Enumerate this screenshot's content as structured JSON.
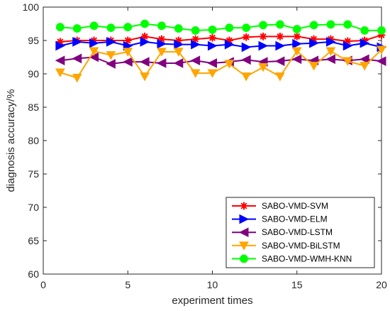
{
  "chart_data": {
    "type": "line",
    "xlabel": "experiment times",
    "ylabel": "diagnosis accuracy/%",
    "xlim": [
      0,
      20
    ],
    "ylim": [
      60,
      100
    ],
    "xticks": [
      0,
      5,
      10,
      15,
      20
    ],
    "yticks": [
      60,
      65,
      70,
      75,
      80,
      85,
      90,
      95,
      100
    ],
    "x": [
      1,
      2,
      3,
      4,
      5,
      6,
      7,
      8,
      9,
      10,
      11,
      12,
      13,
      14,
      15,
      16,
      17,
      18,
      19,
      20
    ],
    "grid": false,
    "legend_position": "bottom-right",
    "series": [
      {
        "name": "SABO-VMD-SVM",
        "color": "#ff0000",
        "marker": "asterisk",
        "values": [
          94.8,
          95.0,
          95.0,
          95.0,
          95.0,
          95.6,
          95.2,
          95.0,
          95.2,
          95.4,
          95.0,
          95.5,
          95.6,
          95.6,
          95.6,
          95.2,
          95.2,
          94.9,
          95.0,
          95.8
        ]
      },
      {
        "name": "SABO-VMD-ELM",
        "color": "#0000ff",
        "marker": "triangle-right",
        "values": [
          94.2,
          94.8,
          94.6,
          94.8,
          94.2,
          94.8,
          94.5,
          94.4,
          94.4,
          94.2,
          94.4,
          94.0,
          94.2,
          94.2,
          94.5,
          94.6,
          94.8,
          94.2,
          94.6,
          94.0
        ]
      },
      {
        "name": "SABO-VMD-LSTM",
        "color": "#800080",
        "marker": "triangle-left",
        "values": [
          92.0,
          92.3,
          92.5,
          91.5,
          91.8,
          91.8,
          91.6,
          91.6,
          92.0,
          91.6,
          91.8,
          92.1,
          91.8,
          91.9,
          92.2,
          92.0,
          92.2,
          92.0,
          92.2,
          91.9
        ]
      },
      {
        "name": "SABO-VMD-BiLSTM",
        "color": "#ffa500",
        "marker": "triangle-down",
        "values": [
          90.2,
          89.4,
          93.4,
          92.8,
          93.3,
          89.6,
          93.3,
          93.3,
          90.1,
          90.1,
          91.5,
          89.6,
          91.0,
          89.6,
          93.4,
          91.2,
          93.4,
          91.9,
          91.2,
          93.6
        ]
      },
      {
        "name": "SABO-VMD-WMH-KNN",
        "color": "#00ff00",
        "marker": "circle",
        "values": [
          97.0,
          96.8,
          97.2,
          96.9,
          97.0,
          97.5,
          97.2,
          96.8,
          96.5,
          96.6,
          96.9,
          96.9,
          97.3,
          97.4,
          96.7,
          97.3,
          97.4,
          97.4,
          96.5,
          96.5
        ]
      }
    ]
  }
}
